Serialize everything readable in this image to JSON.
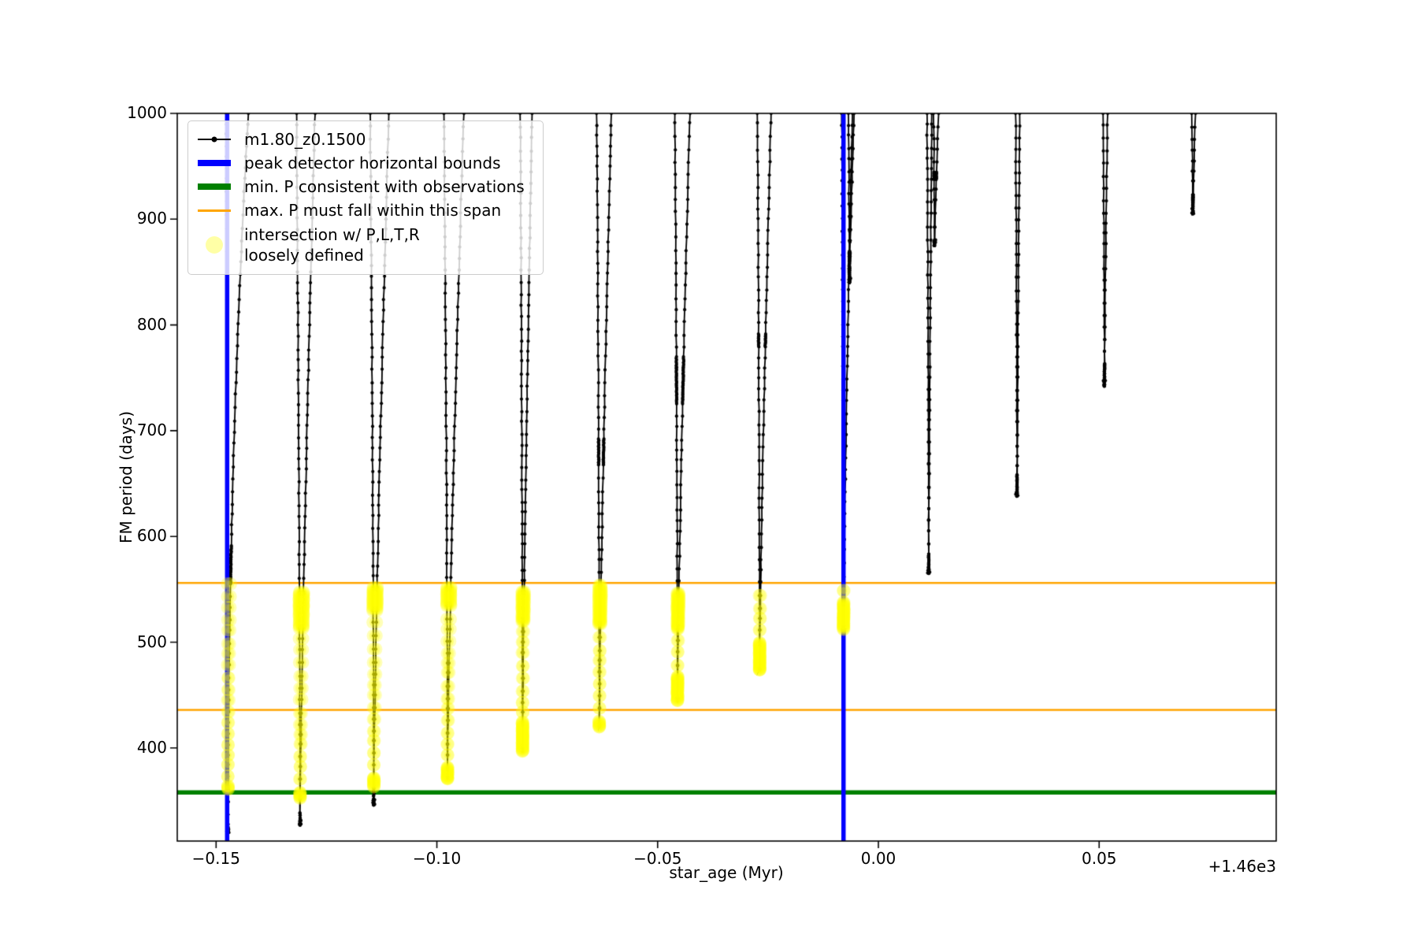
{
  "figure": {
    "xlabel": "star_age (Myr)",
    "ylabel": "FM period (days)",
    "x_offset_label": "+1.46e3",
    "background": "#ffffff",
    "legend": {
      "items": [
        {
          "label": "m1.80_z0.1500",
          "color": "#000000",
          "swatch": "line-marker"
        },
        {
          "label": "peak detector horizontal bounds",
          "color": "#0000ff",
          "swatch": "thick-line"
        },
        {
          "label": "min. P consistent with observations",
          "color": "#008000",
          "swatch": "thick-line"
        },
        {
          "label": "max. P must fall within this span",
          "color": "#ffa500",
          "swatch": "line"
        },
        {
          "label": "intersection w/ P,L,T,R\nloosely defined",
          "color": "#ffff00",
          "swatch": "circle"
        }
      ]
    }
  },
  "chart_data": {
    "type": "line+scatter",
    "title": "",
    "xlabel": "star_age (Myr)",
    "ylabel": "FM period (days)",
    "x_offset": "+1.46e3",
    "xlim": [
      -0.1588,
      0.0901
    ],
    "ylim": [
      312,
      1000
    ],
    "grid": false,
    "x_ticks": [
      -0.15,
      -0.1,
      -0.05,
      0.0,
      0.05
    ],
    "x_tick_labels": [
      "−0.15",
      "−0.10",
      "−0.05",
      "0.00",
      "0.05"
    ],
    "y_ticks": [
      400,
      500,
      600,
      700,
      800,
      900,
      1000
    ],
    "y_tick_labels": [
      "400",
      "500",
      "600",
      "700",
      "800",
      "900",
      "1000"
    ],
    "series_label": "m1.80_z0.1500",
    "track_color": "#000000",
    "vlines": {
      "label": "peak detector horizontal bounds",
      "color": "#0000ff",
      "x": [
        -0.1475,
        -0.0079
      ],
      "linewidth": 5.5
    },
    "hline_green": {
      "label": "min. P consistent with observations",
      "color": "#008000",
      "y": 358,
      "linewidth": 5.5
    },
    "hlines_orange": {
      "label": "max. P must fall within this span",
      "color": "#ffa500",
      "y": [
        556,
        436
      ],
      "linewidth": 2.6
    },
    "yellow": {
      "label": "intersection w/ P,L,T,R loosely defined",
      "color": "#ffff00",
      "alpha": 0.28,
      "radius": 8.5,
      "max_period": 556
    },
    "dips_note": "each dip: x=star_age of minimum (Myr, offset +1.46e3), tip=minimum FM period (days), wl/wr=left/right branch x-width back up to P=1000, exp=right-branch curvature, ymin=lowest period highlighted yellow (null=no yellow), knots=[hi,lo] dense-sampled period ranges",
    "dips": [
      {
        "x": -0.1473,
        "tip": 320,
        "wl": 0.0004,
        "wr": 0.0046,
        "exp": 2.0,
        "ymin": 361,
        "knots": [
          [
            592,
            556
          ],
          [
            368,
            361
          ]
        ]
      },
      {
        "x": -0.131,
        "tip": 327,
        "wl": 0.0008,
        "wr": 0.0034,
        "exp": 1.3,
        "ymin": 352,
        "knots": [
          [
            556,
            514
          ],
          [
            364,
            352
          ]
        ]
      },
      {
        "x": -0.1143,
        "tip": 346,
        "wl": 0.0008,
        "wr": 0.0034,
        "exp": 1.3,
        "ymin": 362,
        "knots": [
          [
            556,
            531
          ],
          [
            378,
            362
          ]
        ]
      },
      {
        "x": -0.0976,
        "tip": 371,
        "wl": 0.0008,
        "wr": 0.0037,
        "exp": 1.3,
        "ymin": 371,
        "knots": [
          [
            556,
            535
          ],
          [
            387,
            371
          ]
        ]
      },
      {
        "x": -0.0806,
        "tip": 397,
        "wl": 0.0005,
        "wr": 0.0022,
        "exp": 1.3,
        "ymin": 397,
        "knots": [
          [
            556,
            520
          ],
          [
            425,
            397
          ]
        ]
      },
      {
        "x": -0.0632,
        "tip": 420,
        "wl": 0.0006,
        "wr": 0.0027,
        "exp": 1.3,
        "ymin": 420,
        "knots": [
          [
            556,
            518
          ],
          [
            700,
            668
          ],
          [
            435,
            420
          ]
        ]
      },
      {
        "x": -0.0455,
        "tip": 445,
        "wl": 0.0006,
        "wr": 0.0028,
        "exp": 1.3,
        "ymin": 445,
        "knots": [
          [
            553,
            513
          ],
          [
            770,
            726
          ],
          [
            470,
            445
          ]
        ]
      },
      {
        "x": -0.0269,
        "tip": 474,
        "wl": 0.0005,
        "wr": 0.0026,
        "exp": 1.3,
        "ymin": 474,
        "knots": [
          [
            800,
            780
          ],
          [
            505,
            474
          ]
        ]
      },
      {
        "x": -0.0079,
        "tip": 508,
        "wl": 0.0004,
        "wr": 0.002,
        "exp": 1.3,
        "ymin": 512,
        "knots": [
          [
            547,
            513
          ]
        ]
      },
      {
        "x": -0.0066,
        "tip": 840,
        "wl": 0.0002,
        "wr": 0.0011,
        "exp": 1.1,
        "ymin": null,
        "knots": [
          [
            875,
            840
          ]
        ]
      },
      {
        "x": 0.0114,
        "tip": 565,
        "wl": 0.0004,
        "wr": 0.0007,
        "exp": 1.2,
        "ymin": null,
        "knots": [
          [
            585,
            565
          ]
        ]
      },
      {
        "x": 0.0127,
        "tip": 875,
        "wl": 0.0002,
        "wr": 0.0009,
        "exp": 1.1,
        "ymin": null,
        "knots": [
          [
            952,
            938
          ],
          [
            886,
            875
          ]
        ]
      },
      {
        "x": 0.0314,
        "tip": 638,
        "wl": 0.0003,
        "wr": 0.0006,
        "exp": 1.2,
        "ymin": null,
        "knots": [
          [
            660,
            638
          ]
        ]
      },
      {
        "x": 0.0512,
        "tip": 742,
        "wl": 0.0003,
        "wr": 0.0007,
        "exp": 1.2,
        "ymin": null,
        "knots": [
          [
            768,
            742
          ]
        ]
      },
      {
        "x": 0.0712,
        "tip": 905,
        "wl": 0.0002,
        "wr": 0.0006,
        "exp": 1.1,
        "ymin": null,
        "knots": [
          [
            930,
            905
          ]
        ]
      }
    ]
  }
}
